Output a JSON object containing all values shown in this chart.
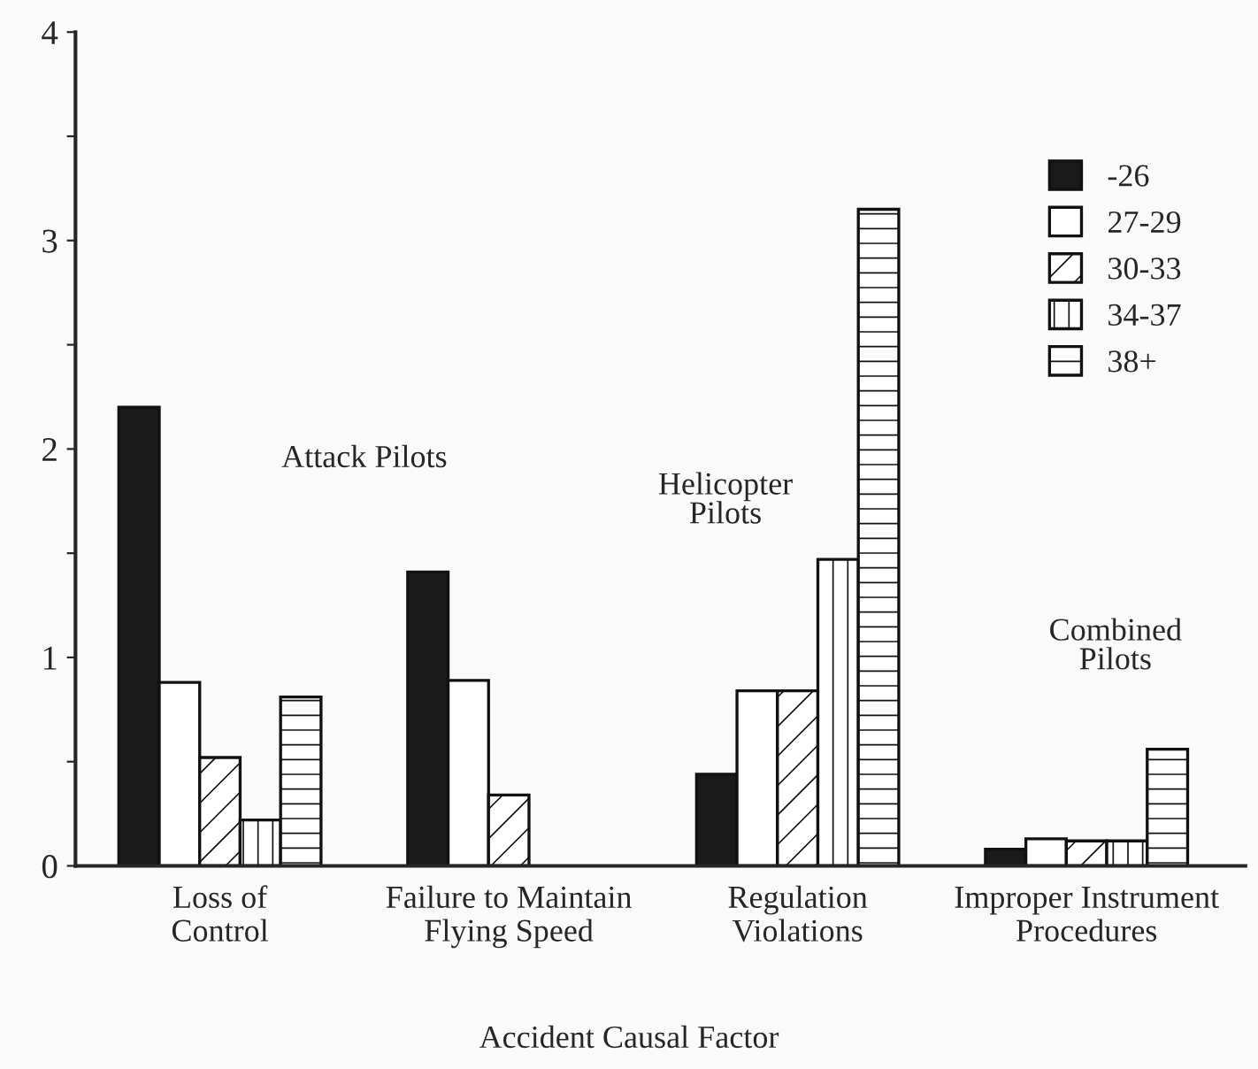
{
  "chart_data": {
    "type": "bar",
    "categories": [
      "Loss of\nControl",
      "Failure to Maintain\nFlying Speed",
      "Regulation\nViolations",
      "Improper Instrument\nProcedures"
    ],
    "series": [
      {
        "name": "-26",
        "color": "#1a1a1a",
        "values": [
          2.2,
          1.41,
          0.44,
          0.08
        ]
      },
      {
        "name": "27-29",
        "color": "#ffffff",
        "values": [
          0.88,
          0.89,
          0.84,
          0.13
        ]
      },
      {
        "name": "30-33",
        "color": "#ffffff",
        "values": [
          0.52,
          0.34,
          0.84,
          0.12
        ]
      },
      {
        "name": "34-37",
        "color": "#ffffff",
        "values": [
          0.22,
          null,
          1.47,
          0.12
        ]
      },
      {
        "name": "38+",
        "color": "#ffffff",
        "values": [
          0.81,
          null,
          3.15,
          0.56
        ]
      }
    ],
    "xlabel": "Accident Causal Factor",
    "ylim": [
      0,
      4
    ],
    "yticks": [
      0,
      {
        "value": 0.5,
        "label": null
      },
      1,
      {
        "value": 1.5,
        "label": null
      },
      2,
      {
        "value": 2.5,
        "label": null
      },
      3,
      {
        "value": 3.5,
        "label": null
      },
      4
    ],
    "annotations": [
      "Attack Pilots",
      "Helicopter\nPilots",
      "Combined\nPilots"
    ],
    "legend": "top right",
    "grid": false
  }
}
